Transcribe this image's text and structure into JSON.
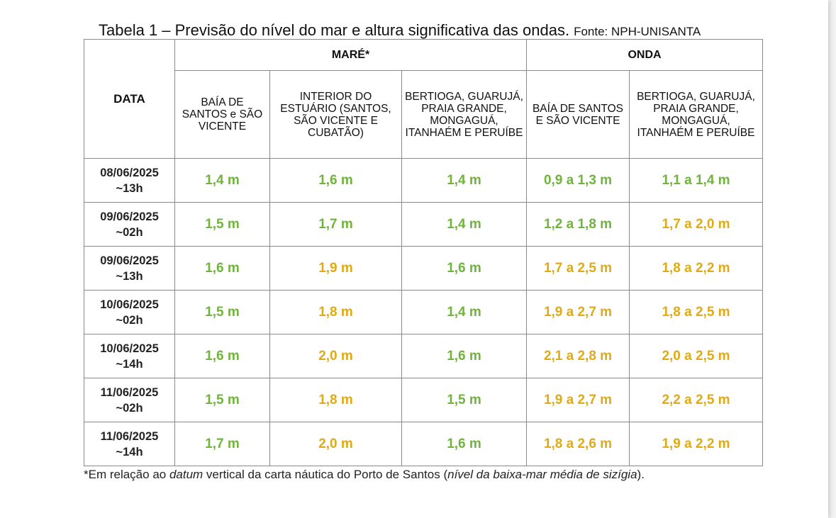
{
  "caption": {
    "title": "Tabela 1 – Previsão do nível do mar e altura significativa das ondas.",
    "source": "Fonte: NPH-UNISANTA"
  },
  "header": {
    "date_label": "DATA",
    "group_tide": "MARÉ*",
    "group_wave": "ONDA",
    "columns": [
      "BAÍA DE SANTOS e SÃO VICENTE",
      "INTERIOR DO ESTUÁRIO (SANTOS, SÃO VICENTE E CUBATÃO)",
      "BERTIOGA, GUARUJÁ, PRAIA GRANDE, MONGAGUÁ, ITANHAÉM E PERUÍBE",
      "BAÍA DE SANTOS E SÃO VICENTE",
      "BERTIOGA, GUARUJÁ, PRAIA GRANDE, MONGAGUÁ, ITANHAÉM E PERUÍBE"
    ]
  },
  "colors": {
    "green": "#6fb43b",
    "yellow": "#e0aa14"
  },
  "rows": [
    {
      "date": "08/06/2025",
      "time": "~13h",
      "cells": [
        {
          "v": "1,4 m",
          "c": "green"
        },
        {
          "v": "1,6 m",
          "c": "green"
        },
        {
          "v": "1,4 m",
          "c": "green"
        },
        {
          "v": "0,9 a 1,3 m",
          "c": "green"
        },
        {
          "v": "1,1 a 1,4 m",
          "c": "green"
        }
      ]
    },
    {
      "date": "09/06/2025",
      "time": "~02h",
      "cells": [
        {
          "v": "1,5 m",
          "c": "green"
        },
        {
          "v": "1,7 m",
          "c": "green"
        },
        {
          "v": "1,4 m",
          "c": "green"
        },
        {
          "v": "1,2 a 1,8 m",
          "c": "green"
        },
        {
          "v": "1,7 a 2,0 m",
          "c": "yellow"
        }
      ]
    },
    {
      "date": "09/06/2025",
      "time": "~13h",
      "cells": [
        {
          "v": "1,6 m",
          "c": "green"
        },
        {
          "v": "1,9 m",
          "c": "yellow"
        },
        {
          "v": "1,6 m",
          "c": "green"
        },
        {
          "v": "1,7 a 2,5 m",
          "c": "yellow"
        },
        {
          "v": "1,8 a 2,2 m",
          "c": "yellow"
        }
      ]
    },
    {
      "date": "10/06/2025",
      "time": "~02h",
      "cells": [
        {
          "v": "1,5 m",
          "c": "green"
        },
        {
          "v": "1,8 m",
          "c": "yellow"
        },
        {
          "v": "1,4 m",
          "c": "green"
        },
        {
          "v": "1,9 a 2,7 m",
          "c": "yellow"
        },
        {
          "v": "1,8 a 2,5 m",
          "c": "yellow"
        }
      ]
    },
    {
      "date": "10/06/2025",
      "time": "~14h",
      "cells": [
        {
          "v": "1,6 m",
          "c": "green"
        },
        {
          "v": "2,0 m",
          "c": "yellow"
        },
        {
          "v": "1,6 m",
          "c": "green"
        },
        {
          "v": "2,1 a 2,8 m",
          "c": "yellow"
        },
        {
          "v": "2,0 a 2,5 m",
          "c": "yellow"
        }
      ]
    },
    {
      "date": "11/06/2025",
      "time": "~02h",
      "cells": [
        {
          "v": "1,5 m",
          "c": "green"
        },
        {
          "v": "1,8 m",
          "c": "yellow"
        },
        {
          "v": "1,5 m",
          "c": "green"
        },
        {
          "v": "1,9 a 2,7 m",
          "c": "yellow"
        },
        {
          "v": "2,2 a 2,5 m",
          "c": "yellow"
        }
      ]
    },
    {
      "date": "11/06/2025",
      "time": "~14h",
      "cells": [
        {
          "v": "1,7 m",
          "c": "green"
        },
        {
          "v": "2,0 m",
          "c": "yellow"
        },
        {
          "v": "1,6 m",
          "c": "green"
        },
        {
          "v": "1,8 a 2,6 m",
          "c": "yellow"
        },
        {
          "v": "1,9 a 2,2 m",
          "c": "yellow"
        }
      ]
    }
  ],
  "footnote": {
    "part1": "*Em relação ao ",
    "part2": "datum",
    "part3": " vertical da carta náutica do Porto de Santos (",
    "part4": "nível da baixa-mar média de sizígia",
    "part5": ")."
  }
}
